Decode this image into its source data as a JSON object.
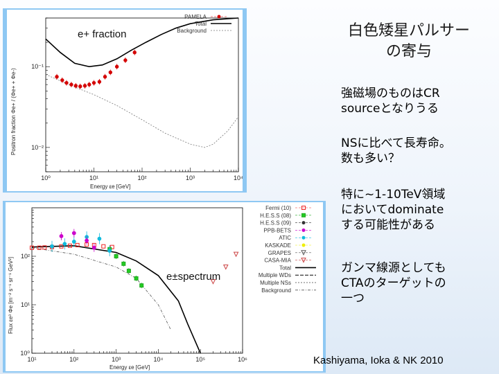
{
  "slide": {
    "title_line1": "白色矮星パルサー",
    "title_line2": "の寄与",
    "points": [
      {
        "lines": [
          "強磁場のものはCR",
          "sourceとなりうる"
        ]
      },
      {
        "lines": [
          "NSに比べて長寿命。",
          "数も多い？"
        ]
      },
      {
        "lines": [
          "特に~1-10TeV領域",
          "においてdominate",
          "する可能性がある"
        ]
      },
      {
        "lines": [
          "ガンマ線源としても",
          "CTAのターゲットの",
          "一つ"
        ]
      }
    ],
    "citation": "Kashiyama, Ioka & NK 2010"
  },
  "colors": {
    "panel_bg": "#8ec8f3",
    "pamela": "#d40000"
  },
  "chart_data": [
    {
      "type": "scatter",
      "label": "e+ fraction",
      "xlabel": "Energy εe [GeV]",
      "ylabel": "Positron fraction Φe+ / (Φe+ + Φe-)",
      "xscale": "log",
      "yscale": "log",
      "xlim": [
        1,
        10000
      ],
      "ylim": [
        0.005,
        0.4
      ],
      "xticks": [
        "10^0",
        "10^1",
        "10^2",
        "10^3",
        "10^4"
      ],
      "yticks": [
        "10^-1",
        "10^-2"
      ],
      "legend": [
        "PAMELA",
        "Total",
        "Background"
      ],
      "legend_position": "top-right",
      "series": [
        {
          "name": "PAMELA",
          "x": [
            1.7,
            2.2,
            2.7,
            3.4,
            4.2,
            5.2,
            6.5,
            8.0,
            10,
            13,
            17,
            22,
            30,
            45,
            70
          ],
          "y": [
            0.075,
            0.068,
            0.063,
            0.06,
            0.058,
            0.057,
            0.058,
            0.06,
            0.063,
            0.065,
            0.075,
            0.085,
            0.1,
            0.12,
            0.15
          ]
        },
        {
          "name": "Total",
          "x": [
            1,
            2,
            4,
            8,
            15,
            30,
            60,
            120,
            250,
            500,
            1000,
            3000,
            10000
          ],
          "y": [
            0.22,
            0.15,
            0.11,
            0.1,
            0.105,
            0.125,
            0.16,
            0.2,
            0.25,
            0.3,
            0.34,
            0.38,
            0.4
          ]
        },
        {
          "name": "Background",
          "x": [
            1,
            3,
            10,
            30,
            100,
            300,
            1000,
            2000,
            3000,
            6000,
            10000
          ],
          "y": [
            0.08,
            0.06,
            0.045,
            0.033,
            0.022,
            0.015,
            0.011,
            0.01,
            0.011,
            0.016,
            0.024
          ]
        }
      ]
    },
    {
      "type": "line",
      "label": "e±spectrum",
      "xlabel": "Energy εe [GeV]",
      "ylabel": "Flux εe³ Φe [m⁻² s⁻¹ sr⁻¹ GeV²]",
      "xscale": "log",
      "yscale": "log",
      "xlim": [
        10,
        1000000
      ],
      "ylim": [
        1,
        1000
      ],
      "xticks": [
        "10^1",
        "10^2",
        "10^3",
        "10^4",
        "10^5",
        "10^6"
      ],
      "yticks": [
        "10^0",
        "10^1",
        "10^2"
      ],
      "legend": [
        "Fermi (10)",
        "H.E.S.S (08)",
        "H.E.S.S (09)",
        "PPB-BETS",
        "ATIC",
        "KASKADE",
        "GRAPES",
        "CASA-MIA",
        "Total",
        "Multiple WDs",
        "Multiple NSs",
        "Background"
      ],
      "legend_position": "right",
      "series": [
        {
          "name": "Fermi (10)",
          "x": [
            10,
            15,
            20,
            30,
            50,
            80,
            120,
            200,
            300,
            500,
            800
          ],
          "y": [
            150,
            150,
            152,
            155,
            160,
            165,
            170,
            175,
            170,
            160,
            155
          ]
        },
        {
          "name": "H.E.S.S (08)",
          "x": [
            700,
            1000,
            1500,
            2000,
            3000,
            4000
          ],
          "y": [
            140,
            100,
            70,
            50,
            35,
            25
          ]
        },
        {
          "name": "ATIC",
          "x": [
            30,
            60,
            100,
            200,
            400,
            700
          ],
          "y": [
            160,
            180,
            200,
            250,
            230,
            130
          ]
        },
        {
          "name": "PPB-BETS",
          "x": [
            50,
            100,
            200,
            300
          ],
          "y": [
            260,
            300,
            210,
            150
          ]
        },
        {
          "name": "CASA-MIA",
          "x": [
            200000,
            400000,
            700000
          ],
          "y": [
            30,
            60,
            110
          ]
        },
        {
          "name": "Total",
          "x": [
            10,
            100,
            1000,
            3000,
            10000,
            30000,
            50000,
            100000
          ],
          "y": [
            155,
            165,
            120,
            80,
            40,
            12,
            4,
            1
          ]
        },
        {
          "name": "Background",
          "x": [
            10,
            100,
            1000,
            3000,
            10000,
            20000
          ],
          "y": [
            150,
            110,
            60,
            35,
            10,
            3
          ]
        }
      ]
    }
  ]
}
